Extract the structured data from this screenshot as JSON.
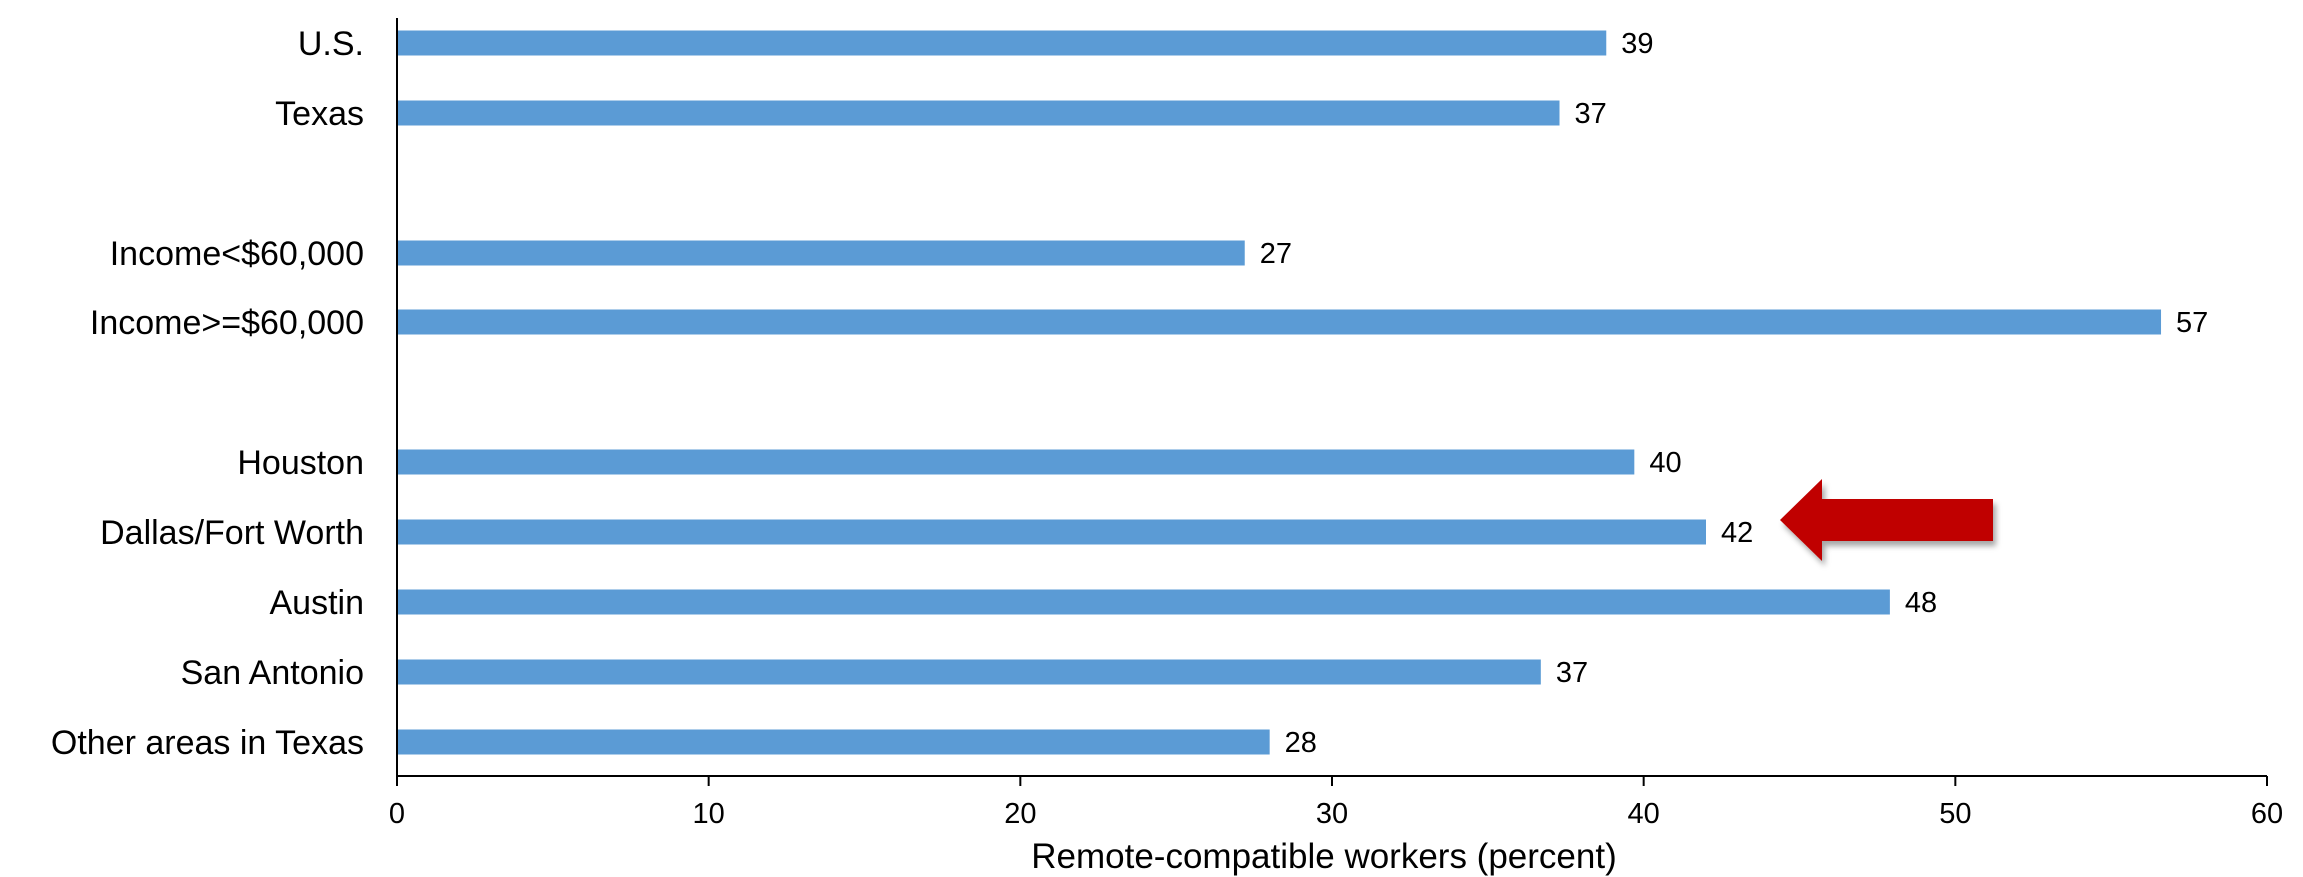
{
  "chart_data": {
    "type": "bar",
    "orientation": "horizontal",
    "categories": [
      "U.S.",
      "Texas",
      "Income<$60,000",
      "Income>=$60,000",
      "Houston",
      "Dallas/Fort Worth",
      "Austin",
      "San Antonio",
      "Other areas in Texas"
    ],
    "values": [
      38.8,
      37.3,
      27.2,
      56.6,
      39.7,
      42.0,
      47.9,
      36.7,
      28.0
    ],
    "data_labels": [
      "39",
      "37",
      "27",
      "57",
      "40",
      "42",
      "48",
      "37",
      "28"
    ],
    "groups": [
      [
        "U.S.",
        "Texas"
      ],
      [
        "Income<$60,000",
        "Income>=$60,000"
      ],
      [
        "Houston",
        "Dallas/Fort Worth",
        "Austin",
        "San Antonio",
        "Other areas in Texas"
      ]
    ],
    "xlabel": "Remote-compatible workers (percent)",
    "xlim": [
      0,
      60
    ],
    "xticks": [
      0,
      10,
      20,
      30,
      40,
      50,
      60
    ],
    "grid": false,
    "legend": "none",
    "highlight": {
      "category": "Dallas/Fort Worth",
      "marker": "arrow"
    },
    "colors": {
      "bar": "#5b9bd5",
      "arrow": "#c00000",
      "axis": "#000000"
    }
  }
}
